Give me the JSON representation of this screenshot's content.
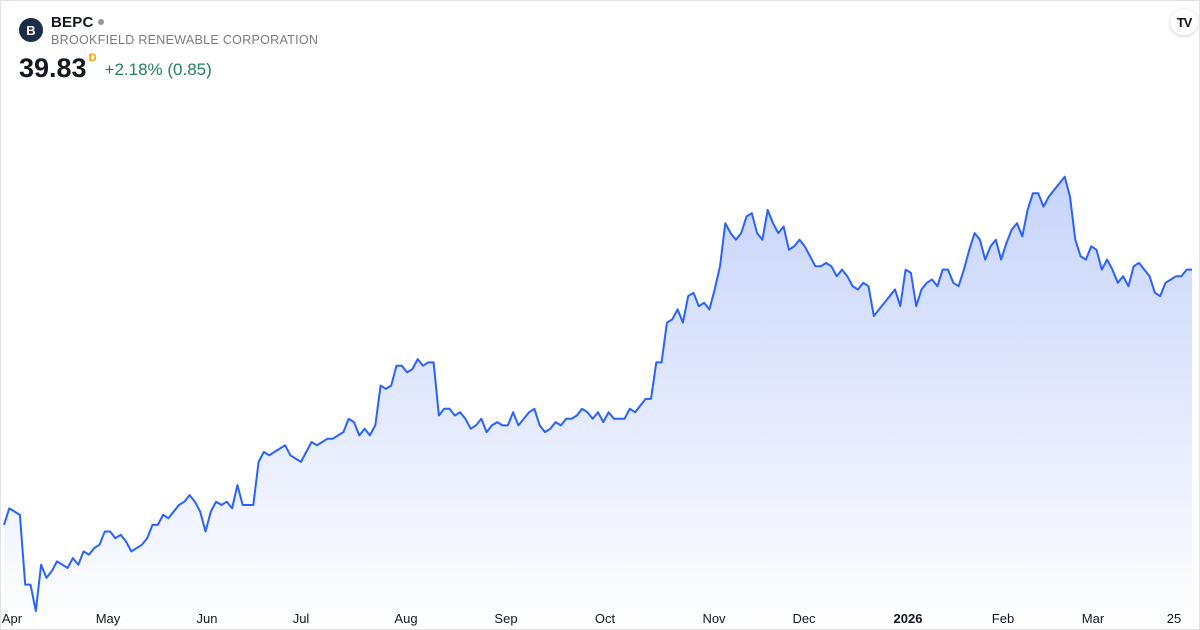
{
  "symbol": {
    "logo_letter": "B",
    "ticker": "BEPC",
    "company": "BROOKFIELD RENEWABLE CORPORATION"
  },
  "quote": {
    "price": "39.83",
    "currency_flag": "D",
    "change": "+2.18% (0.85)"
  },
  "branding": {
    "logo_text": "TV",
    "icon": "tradingview-logo-icon"
  },
  "colors": {
    "line": "#2962ff",
    "fill_top": "#c7d4fb",
    "fill_bottom": "#ffffff",
    "change_positive": "#22825a",
    "logo_bg": "#1c2d4a"
  },
  "chart_data": {
    "type": "area",
    "x_axis_labels": [
      "Apr",
      "May",
      "Jun",
      "Jul",
      "Aug",
      "Sep",
      "Oct",
      "Nov",
      "Dec",
      "2026",
      "Feb",
      "Mar",
      "25"
    ],
    "x_axis_bold": [
      "2026"
    ],
    "grid": false,
    "ylim": [
      23.6,
      42.6
    ],
    "series": [
      {
        "values": [
          26.8,
          27.3,
          27.2,
          27.1,
          25.0,
          25.0,
          24.2,
          25.6,
          25.2,
          25.4,
          25.7,
          25.6,
          25.5,
          25.8,
          25.6,
          26.0,
          25.9,
          26.1,
          26.2,
          26.6,
          26.6,
          26.4,
          26.5,
          26.3,
          26.0,
          26.1,
          26.2,
          26.4,
          26.8,
          26.8,
          27.1,
          27.0,
          27.2,
          27.4,
          27.5,
          27.7,
          27.5,
          27.2,
          26.6,
          27.2,
          27.5,
          27.4,
          27.5,
          27.3,
          28.0,
          27.4,
          27.4,
          27.4,
          28.7,
          29.0,
          28.9,
          29.0,
          29.1,
          29.2,
          28.9,
          28.8,
          28.7,
          29.0,
          29.3,
          29.2,
          29.3,
          29.4,
          29.4,
          29.5,
          29.6,
          30.0,
          29.9,
          29.5,
          29.7,
          29.5,
          29.8,
          31.0,
          30.9,
          31.0,
          31.6,
          31.6,
          31.4,
          31.5,
          31.8,
          31.6,
          31.7,
          31.7,
          30.1,
          30.3,
          30.3,
          30.1,
          30.2,
          30.0,
          29.7,
          29.8,
          30.0,
          29.6,
          29.8,
          29.9,
          29.8,
          29.8,
          30.2,
          29.8,
          30.0,
          30.2,
          30.3,
          29.8,
          29.6,
          29.7,
          29.9,
          29.8,
          30.0,
          30.0,
          30.1,
          30.3,
          30.2,
          30.0,
          30.2,
          29.9,
          30.2,
          30.0,
          30.0,
          30.0,
          30.3,
          30.2,
          30.4,
          30.6,
          30.6,
          31.7,
          31.7,
          32.9,
          33.0,
          33.3,
          32.9,
          33.7,
          33.8,
          33.4,
          33.5,
          33.3,
          33.9,
          34.6,
          35.9,
          35.6,
          35.4,
          35.6,
          36.1,
          36.2,
          35.6,
          35.4,
          36.3,
          35.9,
          35.6,
          35.8,
          35.1,
          35.2,
          35.4,
          35.2,
          34.9,
          34.6,
          34.6,
          34.7,
          34.6,
          34.3,
          34.5,
          34.3,
          34.0,
          33.9,
          34.1,
          34.0,
          33.1,
          33.3,
          33.5,
          33.7,
          33.9,
          33.4,
          34.5,
          34.4,
          33.4,
          33.9,
          34.1,
          34.2,
          34.0,
          34.5,
          34.5,
          34.1,
          34.0,
          34.5,
          35.1,
          35.6,
          35.4,
          34.8,
          35.2,
          35.4,
          34.8,
          35.3,
          35.7,
          35.9,
          35.5,
          36.3,
          36.8,
          36.8,
          36.4,
          36.7,
          36.9,
          37.1,
          37.3,
          36.7,
          35.4,
          34.9,
          34.8,
          35.2,
          35.1,
          34.5,
          34.8,
          34.5,
          34.1,
          34.3,
          34.0,
          34.6,
          34.7,
          34.5,
          34.3,
          33.8,
          33.7,
          34.1,
          34.2,
          34.3,
          34.3,
          34.5,
          34.5
        ]
      }
    ]
  }
}
